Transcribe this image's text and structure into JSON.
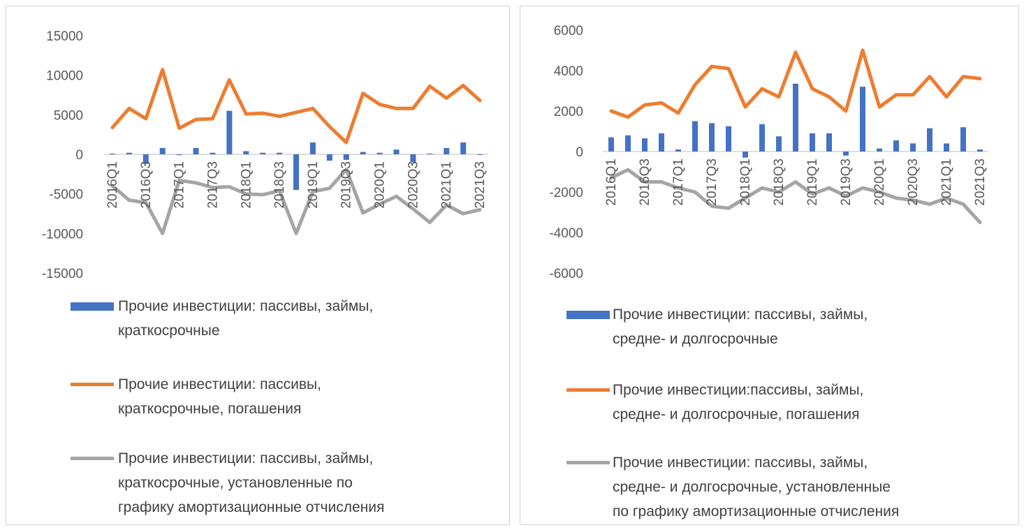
{
  "charts": [
    {
      "id": "left",
      "chart_data": {
        "type": "bar+line",
        "categories": [
          "2016Q1",
          "2016Q2",
          "2016Q3",
          "2016Q4",
          "2017Q1",
          "2017Q2",
          "2017Q3",
          "2017Q4",
          "2018Q1",
          "2018Q2",
          "2018Q3",
          "2018Q4",
          "2019Q1",
          "2019Q2",
          "2019Q3",
          "2019Q4",
          "2020Q1",
          "2020Q2",
          "2020Q3",
          "2020Q4",
          "2021Q1",
          "2021Q2",
          "2021Q3"
        ],
        "tick_labels": [
          "2016Q1",
          "2016Q3",
          "2017Q1",
          "2017Q3",
          "2018Q1",
          "2018Q3",
          "2019Q1",
          "2019Q3",
          "2020Q1",
          "2020Q3",
          "2021Q1",
          "2021Q3"
        ],
        "ylim": [
          -15000,
          15000
        ],
        "yticks": [
          15000,
          10000,
          5000,
          0,
          -5000,
          -10000,
          -15000
        ],
        "legend_position": "bottom",
        "series": [
          {
            "name": "Прочие инвестиции: пассивы, займы, краткосрочные",
            "kind": "bar",
            "color": "#4472c4",
            "values": [
              100,
              200,
              -1200,
              800,
              -100,
              800,
              200,
              5500,
              400,
              200,
              200,
              -4500,
              1500,
              -800,
              -700,
              300,
              200,
              600,
              -1000,
              100,
              800,
              1500,
              0
            ]
          },
          {
            "name": "Прочие инвестиции: пассивы, краткосрочные, погашения",
            "kind": "line",
            "color": "#ed7d31",
            "values": [
              3400,
              5800,
              4500,
              10700,
              3300,
              4400,
              4500,
              9400,
              5100,
              5200,
              4800,
              5300,
              5800,
              3500,
              1500,
              7700,
              6300,
              5800,
              5800,
              8600,
              7100,
              8700,
              6800
            ]
          },
          {
            "name": "Прочие инвестиции: пассивы, займы, краткосрочные, установленные по графику амортизационные отчисления",
            "kind": "line",
            "color": "#a5a5a5",
            "values": [
              -4000,
              -5800,
              -6100,
              -10000,
              -3300,
              -3600,
              -4200,
              -4100,
              -5000,
              -5100,
              -4600,
              -10000,
              -4700,
              -4300,
              -1900,
              -7400,
              -6300,
              -5300,
              -6900,
              -8600,
              -6400,
              -7500,
              -7000
            ]
          }
        ],
        "legend_lines": [
          [
            "Прочие инвестиции: пассивы, займы,",
            "краткосрочные"
          ],
          [
            "Прочие инвестиции: пассивы,",
            "краткосрочные, погашения"
          ],
          [
            "Прочие инвестиции: пассивы, займы,",
            "краткосрочные, установленные по",
            "графику амортизационные отчисления"
          ]
        ]
      }
    },
    {
      "id": "right",
      "chart_data": {
        "type": "bar+line",
        "categories": [
          "2016Q1",
          "2016Q2",
          "2016Q3",
          "2016Q4",
          "2017Q1",
          "2017Q2",
          "2017Q3",
          "2017Q4",
          "2018Q1",
          "2018Q2",
          "2018Q3",
          "2018Q4",
          "2019Q1",
          "2019Q2",
          "2019Q3",
          "2019Q4",
          "2020Q1",
          "2020Q2",
          "2020Q3",
          "2020Q4",
          "2021Q1",
          "2021Q2",
          "2021Q3"
        ],
        "tick_labels": [
          "2016Q1",
          "2016Q3",
          "2017Q1",
          "2017Q3",
          "2018Q1",
          "2018Q3",
          "2019Q1",
          "2019Q3",
          "2020Q1",
          "2020Q3",
          "2021Q1",
          "2021Q3"
        ],
        "ylim": [
          -6000,
          6000
        ],
        "yticks": [
          6000,
          4000,
          2000,
          0,
          -2000,
          -4000,
          -6000
        ],
        "legend_position": "bottom",
        "series": [
          {
            "name": "Прочие инвестиции: пассивы, займы, средне- и долгосрочные",
            "kind": "bar",
            "color": "#4472c4",
            "values": [
              700,
              800,
              650,
              900,
              100,
              1500,
              1400,
              1250,
              -300,
              1350,
              750,
              3350,
              900,
              900,
              -200,
              3200,
              150,
              550,
              400,
              1150,
              400,
              1200,
              100
            ]
          },
          {
            "name": "Прочие инвестиции:пассивы, займы, средне- и долгосрочные, погашения",
            "kind": "line",
            "color": "#ed7d31",
            "values": [
              2000,
              1700,
              2300,
              2400,
              1900,
              3300,
              4200,
              4100,
              2200,
              3100,
              2700,
              4900,
              3100,
              2700,
              2000,
              5000,
              2200,
              2800,
              2800,
              3700,
              2700,
              3700,
              3600
            ]
          },
          {
            "name": "Прочие инвестиции: пассивы, займы, средне- и долгосрочные, установленные по графику амортизационные отчисления",
            "kind": "line",
            "color": "#a5a5a5",
            "values": [
              -1300,
              -900,
              -1500,
              -1500,
              -1800,
              -2000,
              -2700,
              -2800,
              -2300,
              -1800,
              -2000,
              -1500,
              -2100,
              -1800,
              -2200,
              -1800,
              -2000,
              -2300,
              -2400,
              -2600,
              -2300,
              -2600,
              -3500
            ]
          }
        ],
        "legend_lines": [
          [
            "Прочие инвестиции: пассивы, займы,",
            "средне- и долгосрочные"
          ],
          [
            "Прочие инвестиции:пассивы, займы,",
            "средне- и долгосрочные, погашения"
          ],
          [
            "Прочие инвестиции: пассивы, займы,",
            "средне- и долгосрочные, установленные",
            "по графику амортизационные отчисления"
          ]
        ]
      }
    }
  ]
}
